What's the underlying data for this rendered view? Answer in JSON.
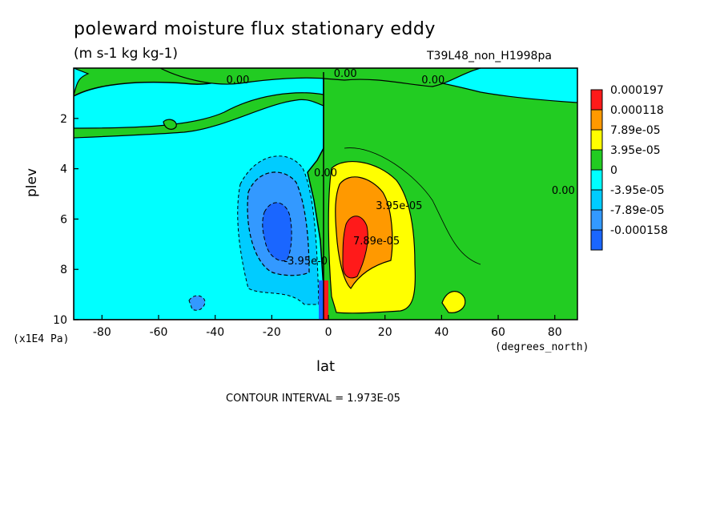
{
  "chart_data": {
    "type": "contour",
    "title": "poleward moisture flux stationary eddy",
    "units": "(m s-1 kg kg-1)",
    "run_label": "T39L48_non_H1998pa",
    "xlabel": "lat",
    "x_units": "(degrees_north)",
    "ylabel": "plev",
    "y_units": "(x1E4 Pa)",
    "xlim": [
      -90,
      88
    ],
    "ylim": [
      10,
      0
    ],
    "x_ticks": [
      -80,
      -60,
      -40,
      -20,
      0,
      20,
      40,
      60,
      80
    ],
    "y_ticks": [
      2,
      4,
      6,
      8,
      10
    ],
    "contour_interval_text": "CONTOUR INTERVAL = 1.973E-05",
    "colorbar": {
      "labels": [
        "0.000197",
        "0.000118",
        "7.89e-05",
        "3.95e-05",
        "0",
        "-3.95e-05",
        "-7.89e-05",
        "-0.000158"
      ],
      "colors": [
        "#ff1a1a",
        "#ff9900",
        "#ffff00",
        "#22cc22",
        "#00ffff",
        "#00ccff",
        "#3399ff",
        "#1a66ff"
      ]
    },
    "contour_labels": [
      {
        "text": "0.00",
        "lat": -32,
        "plev": 0.6
      },
      {
        "text": "0.00",
        "lat": 6,
        "plev": 0.35
      },
      {
        "text": "0.00",
        "lat": 37,
        "plev": 0.6
      },
      {
        "text": "0.00",
        "lat": -1,
        "plev": 4.3
      },
      {
        "text": "0.00",
        "lat": 83,
        "plev": 5.0
      },
      {
        "text": "3.95e-05",
        "lat": 25,
        "plev": 5.6
      },
      {
        "text": "7.89e-05",
        "lat": 17,
        "plev": 7.0
      },
      {
        "text": "-3.95e-0",
        "lat": -8,
        "plev": 7.8
      }
    ]
  }
}
